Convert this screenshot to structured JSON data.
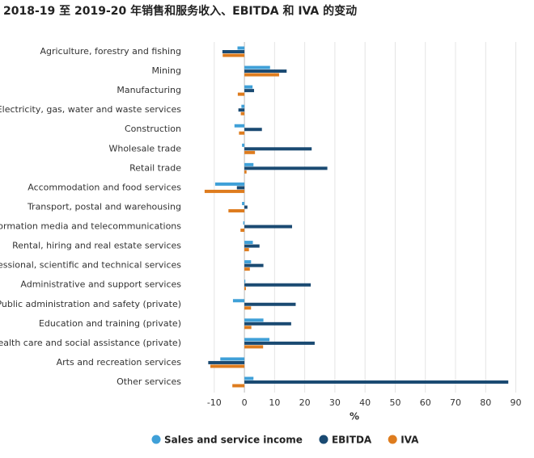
{
  "chart_data": {
    "type": "hbar",
    "title": "2018-19 至 2019-20 年销售和服务收入、EBITDA 和 IVA 的变动",
    "x_label": "%",
    "categories": [
      "Agriculture, forestry and fishing",
      "Mining",
      "Manufacturing",
      "Electricity, gas, water and waste services",
      "Construction",
      "Wholesale trade",
      "Retail trade",
      "Accommodation and food services",
      "Transport, postal and warehousing",
      "Information media and telecommunications",
      "Rental, hiring and real estate services",
      "Professional, scientific and technical services",
      "Administrative and support services",
      "Public administration and safety (private)",
      "Education and training (private)",
      "Health care and social assistance (private)",
      "Arts and recreation services",
      "Other services"
    ],
    "series": [
      {
        "name": "Sales and service income",
        "color": "#3fa0d8",
        "values": [
          -2.3,
          8.5,
          2.7,
          -1,
          -3.3,
          -0.8,
          3,
          -9.7,
          -0.8,
          -0.4,
          2.8,
          2.2,
          0.3,
          -3.8,
          6.3,
          8.3,
          -8,
          3
        ]
      },
      {
        "name": "EBITDA",
        "color": "#1a4a72",
        "values": [
          -7.3,
          14,
          3.2,
          -2,
          5.8,
          22.3,
          27.5,
          -2.5,
          1,
          15.8,
          5,
          6.3,
          22,
          17,
          15.5,
          23.3,
          -12,
          87.5
        ]
      },
      {
        "name": "IVA",
        "color": "#de7c1e",
        "values": [
          -7.2,
          11.5,
          -2.2,
          -1.2,
          -1.8,
          3.5,
          0.7,
          -13.2,
          -5.3,
          -1.3,
          1.5,
          1.8,
          0.5,
          2.2,
          2.3,
          6.2,
          -11.3,
          -4
        ]
      }
    ],
    "xlim": [
      -18,
      92
    ],
    "xticks": [
      -10,
      0,
      10,
      20,
      30,
      40,
      50,
      60,
      70,
      80,
      90
    ],
    "grid": true
  }
}
